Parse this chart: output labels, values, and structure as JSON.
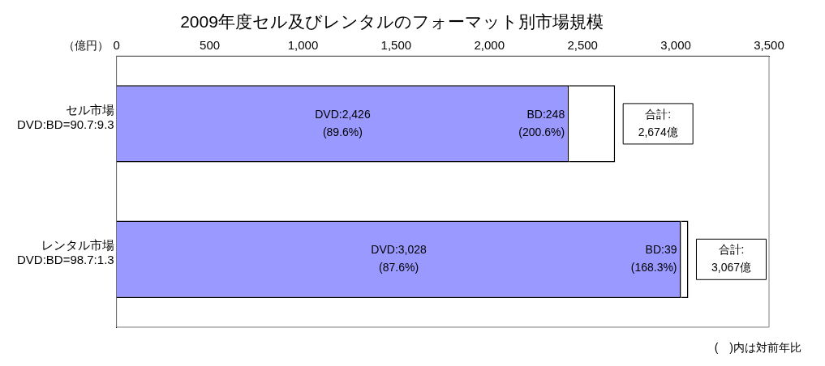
{
  "chart_data": {
    "type": "bar",
    "orientation": "horizontal",
    "stacked": true,
    "title": "2009年度セル及びレンタルのフォーマット別市場規模",
    "xlabel": "（億円）",
    "categories": [
      "セル市場\nDVD:BD=90.7:9.3",
      "レンタル市場\nDVD:BD=98.7:1.3"
    ],
    "series": [
      {
        "color": "#9999ff",
        "values": [
          2426,
          3028
        ],
        "value_labels": [
          "DVD:2,426\n(89.6%)",
          "DVD:3,028\n(87.6%)"
        ]
      },
      {
        "color": "#ffffff",
        "values": [
          248,
          39
        ],
        "value_labels": [
          "BD:248\n(200.6%)",
          "BD:39\n(168.3%)"
        ]
      }
    ],
    "totals": [
      "合計:\n2,674億",
      "合計:\n3,067億"
    ],
    "xlim": [
      0,
      3500
    ],
    "xticks": [
      0,
      500,
      {
        "value": 1000,
        "label": "1,000"
      },
      {
        "value": 1500,
        "label": "1,500"
      },
      {
        "value": 2000,
        "label": "2,000"
      },
      {
        "value": 2500,
        "label": "2,500"
      },
      {
        "value": 3000,
        "label": "3,000"
      },
      {
        "value": 3500,
        "label": "3,500"
      }
    ],
    "grid": false,
    "legend": false,
    "annotations": [
      "(　)内は対前年比"
    ]
  }
}
